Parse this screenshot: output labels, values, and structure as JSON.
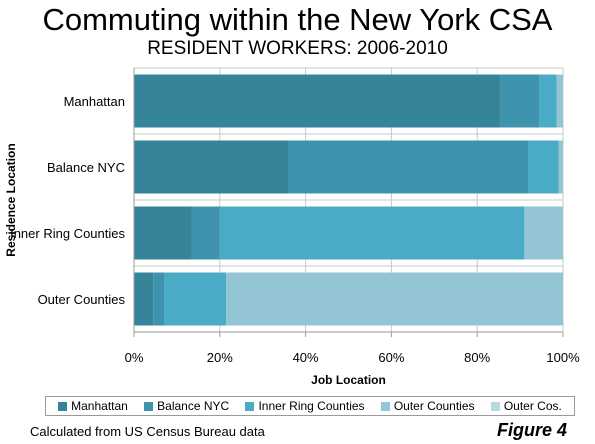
{
  "title": "Commuting within the New York CSA",
  "subtitle": "RESIDENT WORKERS: 2006-2010",
  "footer": {
    "source": "Calculated from US Census Bureau data",
    "figure": "Figure 4"
  },
  "chart_data": {
    "type": "bar",
    "orientation": "horizontal",
    "stacked": true,
    "categories": [
      "Manhattan",
      "Balance NYC",
      "Inner Ring Counties",
      "Outer Counties"
    ],
    "xlabel": "Job Location",
    "ylabel": "Residence Location",
    "xlim": [
      0,
      100
    ],
    "xticks": [
      "0%",
      "20%",
      "40%",
      "60%",
      "80%",
      "100%"
    ],
    "grid": true,
    "legend_position": "bottom",
    "series": [
      {
        "name": "Manhattan",
        "color": "#35849a",
        "values": [
          85.5,
          36,
          13.5,
          4.5
        ]
      },
      {
        "name": "Balance NYC",
        "color": "#3f93ac",
        "values": [
          9,
          56,
          6.5,
          2.5
        ]
      },
      {
        "name": "Inner Ring Counties",
        "color": "#4aabc6",
        "values": [
          4,
          7,
          71,
          14.5
        ]
      },
      {
        "name": "Outer Counties",
        "color": "#93c5d5",
        "values": [
          1.5,
          1,
          9,
          78.5
        ]
      },
      {
        "name": "Outer Cos.",
        "color": "#b6d9e4",
        "values": [
          0,
          0,
          0,
          0
        ]
      }
    ]
  }
}
